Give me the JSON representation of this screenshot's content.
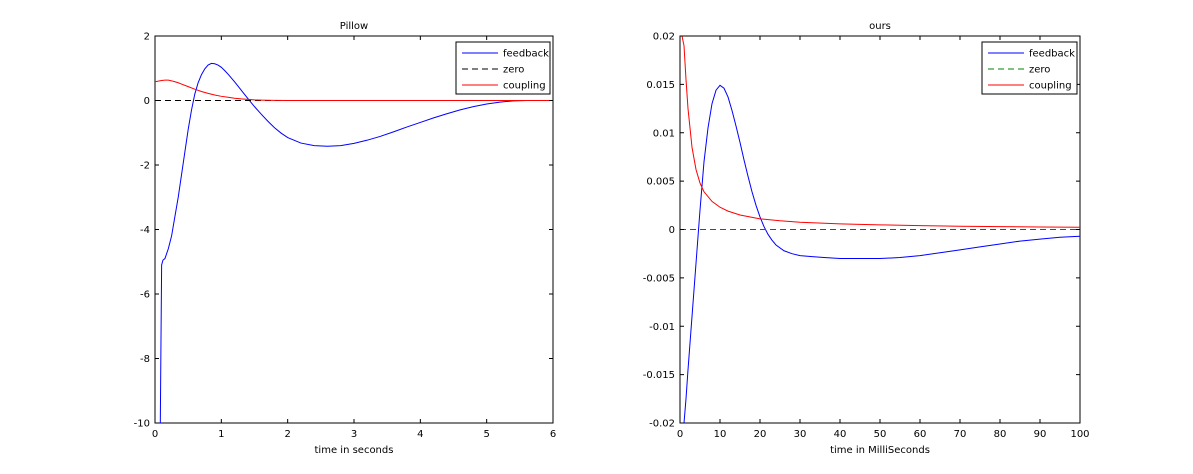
{
  "chart_data": [
    {
      "type": "line",
      "title": "Pillow",
      "xlabel": "time in seconds",
      "ylabel": "",
      "xlim": [
        0,
        6
      ],
      "ylim": [
        -10,
        2
      ],
      "xticks": [
        0,
        1,
        2,
        3,
        4,
        5,
        6
      ],
      "yticks": [
        -10,
        -8,
        -6,
        -4,
        -2,
        0,
        2
      ],
      "grid": false,
      "legend": "top-right",
      "series": [
        {
          "name": "feedback",
          "color": "#0000ff",
          "dash": "solid",
          "x": [
            0.08,
            0.09,
            0.1,
            0.12,
            0.15,
            0.2,
            0.25,
            0.3,
            0.35,
            0.4,
            0.45,
            0.5,
            0.55,
            0.6,
            0.65,
            0.7,
            0.75,
            0.8,
            0.85,
            0.9,
            0.95,
            1.0,
            1.05,
            1.1,
            1.2,
            1.3,
            1.4,
            1.5,
            1.6,
            1.7,
            1.8,
            1.9,
            2.0,
            2.2,
            2.4,
            2.6,
            2.8,
            3.0,
            3.2,
            3.4,
            3.6,
            3.8,
            4.0,
            4.2,
            4.4,
            4.6,
            4.8,
            5.0,
            5.2,
            5.4,
            5.6,
            5.8,
            6.0
          ],
          "y": [
            -10,
            -7.5,
            -5.1,
            -4.95,
            -4.9,
            -4.6,
            -4.2,
            -3.6,
            -3.0,
            -2.3,
            -1.6,
            -0.9,
            -0.3,
            0.2,
            0.55,
            0.8,
            0.98,
            1.1,
            1.15,
            1.14,
            1.1,
            1.03,
            0.93,
            0.82,
            0.58,
            0.32,
            0.06,
            -0.19,
            -0.42,
            -0.64,
            -0.84,
            -1.01,
            -1.15,
            -1.32,
            -1.4,
            -1.42,
            -1.4,
            -1.33,
            -1.23,
            -1.11,
            -0.97,
            -0.82,
            -0.68,
            -0.54,
            -0.41,
            -0.29,
            -0.19,
            -0.11,
            -0.05,
            -0.01,
            0.0,
            0.0,
            0.0
          ]
        },
        {
          "name": "zero",
          "color": "#000000",
          "dash": "dashed",
          "x": [
            0,
            6
          ],
          "y": [
            0,
            0
          ]
        },
        {
          "name": "coupling",
          "color": "#ff0000",
          "dash": "solid",
          "x": [
            0,
            0.05,
            0.1,
            0.15,
            0.2,
            0.25,
            0.3,
            0.35,
            0.4,
            0.5,
            0.6,
            0.7,
            0.8,
            0.9,
            1.0,
            1.1,
            1.2,
            1.3,
            1.4,
            1.5,
            1.6,
            1.8,
            2.0,
            2.5,
            3.0,
            4.0,
            5.0,
            6.0
          ],
          "y": [
            0.58,
            0.6,
            0.62,
            0.63,
            0.63,
            0.61,
            0.58,
            0.55,
            0.51,
            0.43,
            0.35,
            0.28,
            0.22,
            0.17,
            0.13,
            0.1,
            0.07,
            0.05,
            0.035,
            0.02,
            0.012,
            0.005,
            0.002,
            0.0,
            0.0,
            0.0,
            0.0,
            0.0
          ]
        }
      ]
    },
    {
      "type": "line",
      "title": "ours",
      "xlabel": "time in MilliSeconds",
      "ylabel": "",
      "xlim": [
        0,
        100
      ],
      "ylim": [
        -0.02,
        0.02
      ],
      "xticks": [
        0,
        10,
        20,
        30,
        40,
        50,
        60,
        70,
        80,
        90,
        100
      ],
      "yticks": [
        -0.02,
        -0.015,
        -0.01,
        -0.005,
        0,
        0.005,
        0.01,
        0.015,
        0.02
      ],
      "ytick_labels": [
        "-0.02",
        "-0.015",
        "-0.01",
        "-0.005",
        "0",
        "0.005",
        "0.01",
        "0.015",
        "0.02"
      ],
      "grid": false,
      "legend": "top-right",
      "series": [
        {
          "name": "feedback",
          "color": "#0000ff",
          "dash": "solid",
          "x": [
            1.0,
            1.5,
            2,
            3,
            4,
            5,
            6,
            7,
            8,
            9,
            10,
            11,
            12,
            13,
            14,
            15,
            16,
            17,
            18,
            19,
            20,
            21,
            22,
            23,
            24,
            26,
            28,
            30,
            33,
            36,
            40,
            45,
            50,
            55,
            60,
            65,
            70,
            75,
            80,
            85,
            90,
            95,
            100
          ],
          "y": [
            -0.02,
            -0.0175,
            -0.0145,
            -0.009,
            -0.0035,
            0.002,
            0.007,
            0.0105,
            0.013,
            0.0144,
            0.0149,
            0.0146,
            0.0137,
            0.0123,
            0.0107,
            0.009,
            0.0072,
            0.0055,
            0.0039,
            0.0025,
            0.0013,
            0.0003,
            -0.0005,
            -0.0011,
            -0.0016,
            -0.0022,
            -0.0025,
            -0.0027,
            -0.0028,
            -0.0029,
            -0.003,
            -0.003,
            -0.003,
            -0.0029,
            -0.0027,
            -0.0024,
            -0.0021,
            -0.0018,
            -0.0015,
            -0.0012,
            -0.001,
            -0.0008,
            -0.0007
          ]
        },
        {
          "name": "zero",
          "color": "#008000",
          "dash": "dashed",
          "x": [
            0,
            100
          ],
          "y": [
            0,
            0
          ]
        },
        {
          "name": "coupling",
          "color": "#ff0000",
          "dash": "solid",
          "x": [
            0.5,
            1,
            1.5,
            2,
            3,
            4,
            5,
            6,
            8,
            10,
            12,
            15,
            20,
            25,
            30,
            40,
            50,
            60,
            70,
            80,
            90,
            100
          ],
          "y": [
            0.02,
            0.019,
            0.0155,
            0.0125,
            0.0085,
            0.0062,
            0.0048,
            0.0039,
            0.0029,
            0.0023,
            0.0019,
            0.0015,
            0.0011,
            0.0009,
            0.00075,
            0.00058,
            0.00048,
            0.0004,
            0.00034,
            0.0003,
            0.00026,
            0.00023
          ]
        }
      ]
    }
  ]
}
